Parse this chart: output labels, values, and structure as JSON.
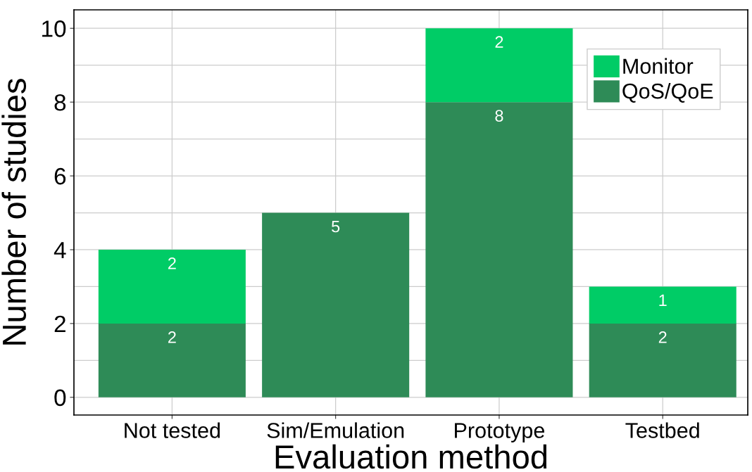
{
  "chart_data": {
    "type": "bar",
    "stacked": true,
    "xlabel": "Evaluation method",
    "ylabel": "Number of studies",
    "categories": [
      "Not tested",
      "Sim/Emulation",
      "Prototype",
      "Testbed"
    ],
    "series": [
      {
        "name": "QoS/QoE",
        "color": "#2e8b57",
        "values": [
          2,
          5,
          8,
          2
        ]
      },
      {
        "name": "Monitor",
        "color": "#00cc66",
        "values": [
          2,
          null,
          2,
          1
        ]
      }
    ],
    "ylim": [
      -0.48,
      10.5
    ],
    "yticks": [
      0,
      2,
      4,
      6,
      8,
      10
    ],
    "grid": true,
    "legend": "top right",
    "data_labels": true
  }
}
